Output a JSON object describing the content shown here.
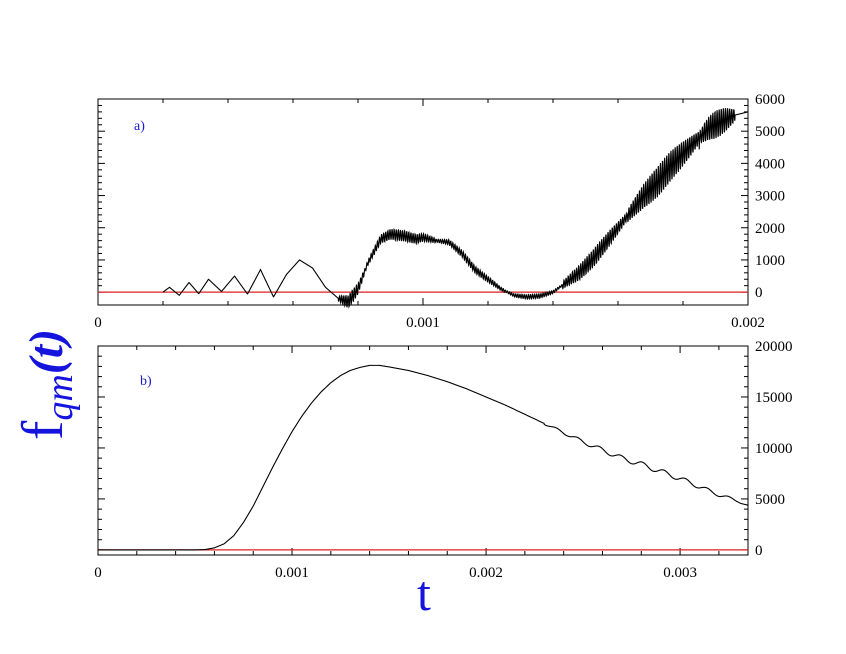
{
  "colors": {
    "curve": "#000000",
    "zero_line": "#dd2020",
    "axis_title": "#1414dd",
    "panel_label": "#1a1acc"
  },
  "y_axis_title": {
    "main": "f",
    "subscript": "qm",
    "argument": "(t)"
  },
  "x_axis_title": "t",
  "chart_data": [
    {
      "type": "line",
      "panel_label": "a)",
      "xlim": [
        0,
        0.002
      ],
      "ylim": [
        -400,
        6000
      ],
      "x_ticks": [
        0,
        0.001,
        0.002
      ],
      "x_tick_labels": [
        "0",
        "0.001",
        "0.002"
      ],
      "y_ticks": [
        0,
        1000,
        2000,
        3000,
        4000,
        5000,
        6000
      ],
      "y_tick_labels": [
        "0",
        "1000",
        "2000",
        "3000",
        "4000",
        "5000",
        "6000"
      ],
      "y_axis_side": "right",
      "reference_line": 0,
      "series": [
        {
          "x": [
            0.0002,
            0.00022,
            0.00025,
            0.00028,
            0.00031,
            0.00034,
            0.00038,
            0.00042,
            0.00046,
            0.0005,
            0.00054,
            0.00058,
            0.00062,
            0.00066,
            0.0007,
            0.00074,
            0.00077,
            0.0008,
            0.00083,
            0.00087,
            0.0009,
            0.00094,
            0.00098,
            0.001,
            0.00104,
            0.00108,
            0.00112,
            0.00116,
            0.0012,
            0.00124,
            0.00128,
            0.00132,
            0.00136,
            0.0014,
            0.00144,
            0.00148,
            0.00152,
            0.00156,
            0.0016,
            0.00164,
            0.00168,
            0.00172,
            0.00176,
            0.0018,
            0.00184,
            0.00188,
            0.00192,
            0.00196,
            0.002
          ],
          "y": [
            0,
            150,
            -100,
            300,
            -50,
            400,
            20,
            500,
            -60,
            700,
            -150,
            550,
            1000,
            750,
            150,
            -200,
            -300,
            100,
            900,
            1650,
            1800,
            1750,
            1650,
            1700,
            1600,
            1550,
            1200,
            700,
            400,
            100,
            -100,
            -150,
            -120,
            0,
            300,
            600,
            1000,
            1500,
            2000,
            2500,
            3000,
            3400,
            3900,
            4300,
            4700,
            5100,
            5300,
            5500,
            5600
          ],
          "oscillation": [
            {
              "from": 0.00074,
              "to": 0.00082,
              "amplitude": 200
            },
            {
              "from": 0.00082,
              "to": 0.00104,
              "amplitude": 170
            },
            {
              "from": 0.00104,
              "to": 0.00125,
              "amplitude": 110
            },
            {
              "from": 0.00125,
              "to": 0.00143,
              "amplitude": 70
            },
            {
              "from": 0.00143,
              "to": 0.00163,
              "amplitude": 280
            },
            {
              "from": 0.00163,
              "to": 0.00185,
              "amplitude": 480
            },
            {
              "from": 0.00185,
              "to": 0.00196,
              "amplitude": 430
            }
          ]
        }
      ]
    },
    {
      "type": "line",
      "panel_label": "b)",
      "xlim": [
        0,
        0.00335
      ],
      "ylim": [
        -500,
        20000
      ],
      "x_ticks": [
        0,
        0.001,
        0.002,
        0.003
      ],
      "x_tick_labels": [
        "0",
        "0.001",
        "0.002",
        "0.003"
      ],
      "y_ticks": [
        0,
        5000,
        10000,
        15000,
        20000
      ],
      "y_tick_labels": [
        "0",
        "5000",
        "10000",
        "15000",
        "20000"
      ],
      "y_axis_side": "right",
      "reference_line": 0,
      "series": [
        {
          "x": [
            0,
            0.0005,
            0.00055,
            0.0006,
            0.00065,
            0.0007,
            0.00075,
            0.0008,
            0.00085,
            0.0009,
            0.00095,
            0.001,
            0.00105,
            0.0011,
            0.00115,
            0.0012,
            0.00125,
            0.0013,
            0.00135,
            0.0014,
            0.00145,
            0.0015,
            0.0016,
            0.0017,
            0.0018,
            0.0019,
            0.002,
            0.0021,
            0.0022,
            0.0023,
            0.0024,
            0.0025,
            0.0026,
            0.0027,
            0.0028,
            0.0029,
            0.003,
            0.0031,
            0.0032,
            0.0033,
            0.00335
          ],
          "y": [
            0,
            0,
            30,
            200,
            600,
            1400,
            2700,
            4300,
            6200,
            8100,
            9900,
            11600,
            13100,
            14400,
            15500,
            16400,
            17100,
            17600,
            17900,
            18100,
            18100,
            17950,
            17600,
            17100,
            16500,
            15800,
            15000,
            14200,
            13300,
            12400,
            11500,
            10600,
            9800,
            9000,
            8400,
            7700,
            7000,
            6200,
            5400,
            4800,
            4300
          ],
          "oscillation": [
            {
              "from": 0.0023,
              "to": 0.00335,
              "amplitude": 250
            }
          ]
        }
      ]
    }
  ]
}
